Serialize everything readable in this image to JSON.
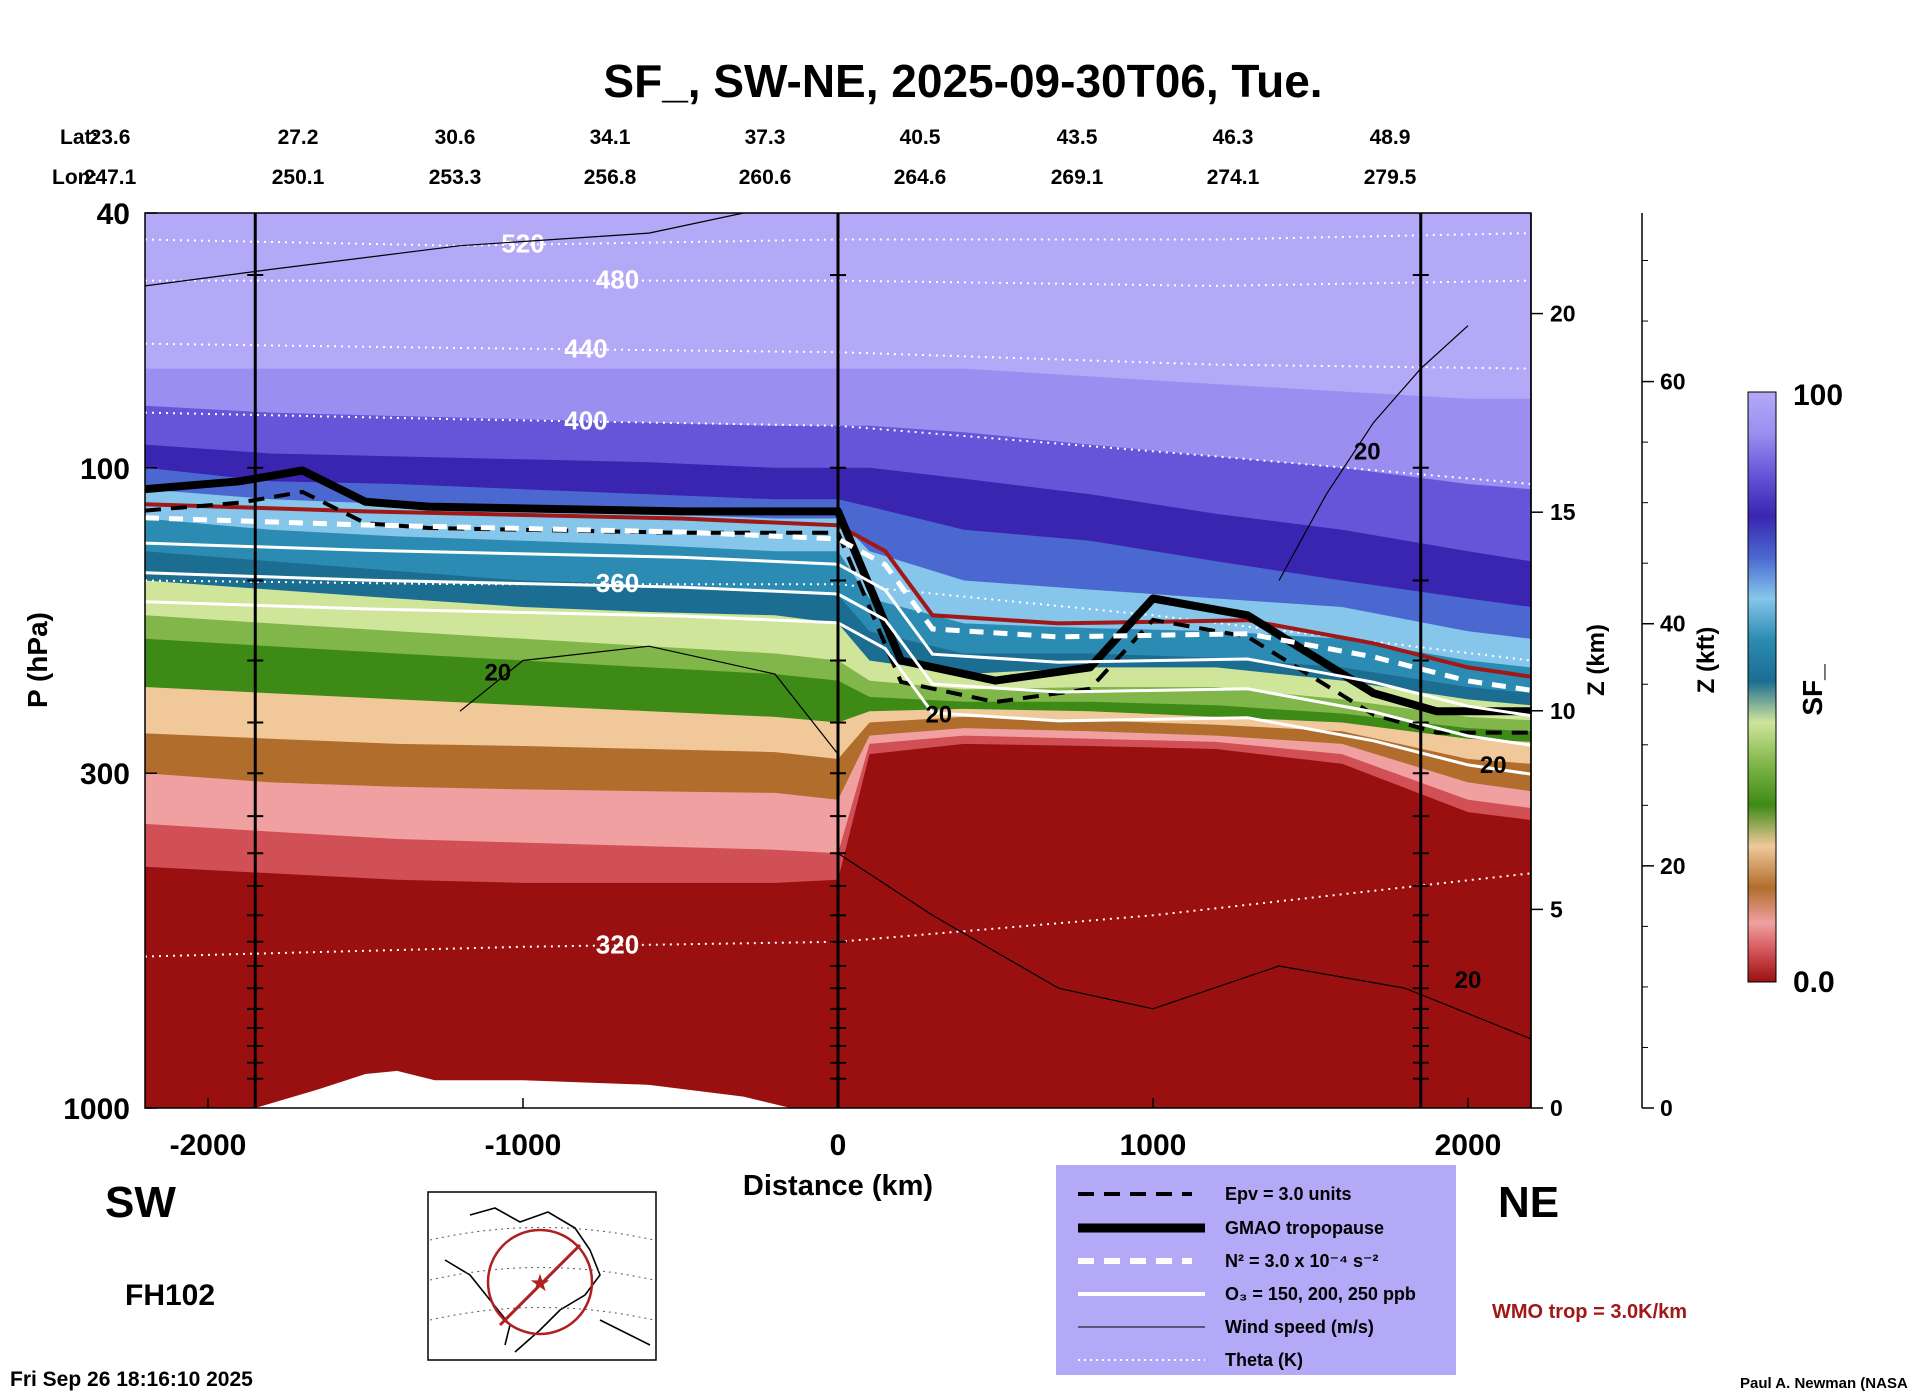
{
  "chart_data": {
    "type": "heatmap",
    "title": "SF_, SW-NE, 2025-09-30T06, Tue.",
    "xlabel": "Distance (km)",
    "ylabel": "P (hPa)",
    "y2label": "Z (km)",
    "y3label": "Z (kft)",
    "colorbar_label": "SF_",
    "colorbar_range": [
      0.0,
      100
    ],
    "colorbar_max_label": "100",
    "colorbar_min_label": "0.0",
    "xlim": [
      -2200,
      2200
    ],
    "x_ticks": [
      -2000,
      -1000,
      0,
      1000,
      2000
    ],
    "ylim": [
      1000,
      40
    ],
    "y_scale": "log",
    "y_ticks": [
      40,
      100,
      300,
      1000
    ],
    "z_km_ticks": [
      0,
      5,
      10,
      15,
      20
    ],
    "z_kft_ticks": [
      0,
      20,
      40,
      60
    ],
    "lat_label": "Lat:",
    "lon_label": "Lon:",
    "lat": [
      "23.6",
      "27.2",
      "30.6",
      "34.1",
      "37.3",
      "40.5",
      "43.5",
      "46.3",
      "48.9"
    ],
    "lon": [
      "247.1",
      "250.1",
      "253.3",
      "256.8",
      "260.6",
      "264.6",
      "269.1",
      "274.1",
      "279.5"
    ],
    "vertical_lines_km": [
      -1850,
      0,
      1850
    ],
    "theta_contours": [
      {
        "label": "520",
        "x": [
          -2200,
          -1200,
          0,
          1200,
          2200
        ],
        "p": [
          44,
          45,
          44,
          44,
          43
        ]
      },
      {
        "label": "480",
        "x": [
          -2200,
          -1200,
          0,
          1200,
          2200
        ],
        "p": [
          51,
          51,
          51,
          52,
          51
        ]
      },
      {
        "label": "440",
        "x": [
          -2200,
          -1200,
          0,
          1200,
          2200
        ],
        "p": [
          64,
          65,
          66,
          69,
          70
        ]
      },
      {
        "label": "400",
        "x": [
          -2200,
          -1200,
          0,
          1200,
          2200
        ],
        "p": [
          82,
          84,
          86,
          96,
          106
        ]
      },
      {
        "label": "360",
        "x": [
          -2200,
          -1200,
          0,
          1000,
          2200
        ],
        "p": [
          150,
          152,
          152,
          170,
          200
        ]
      },
      {
        "label": "320",
        "x": [
          -2200,
          -1000,
          0,
          1000,
          2200
        ],
        "p": [
          580,
          560,
          550,
          500,
          430
        ]
      }
    ],
    "tropopause_gmao": {
      "x": [
        -2200,
        -1900,
        -1700,
        -1500,
        -1300,
        -900,
        -500,
        0,
        200,
        500,
        800,
        1000,
        1300,
        1700,
        1900,
        2200
      ],
      "p": [
        108,
        105,
        101,
        113,
        115,
        116,
        117,
        117,
        200,
        215,
        205,
        160,
        170,
        225,
        240,
        240
      ]
    },
    "wmo_tropopause": {
      "x": [
        -2200,
        -1500,
        -500,
        0,
        150,
        300,
        700,
        1300,
        1700,
        2000,
        2200
      ],
      "p": [
        114,
        117,
        120,
        123,
        135,
        170,
        175,
        173,
        188,
        205,
        212
      ]
    },
    "wind_speed_label": "20",
    "legend": {
      "placement": "bottom-center",
      "entries": [
        "Epv = 3.0 units",
        "GMAO tropopause",
        "N² = 3.0 x 10⁻⁴ s⁻²",
        "O₃ = 150, 200, 250 ppb",
        "Wind speed (m/s)",
        "Theta (K)"
      ]
    },
    "annotations": {
      "left_direction": "SW",
      "right_direction": "NE",
      "forecast_hour": "FH102",
      "wmo_note": "WMO trop = 3.0K/km",
      "timestamp": "Fri Sep 26 18:16:10 2025",
      "credit": "Paul A. Newman (NASA"
    },
    "colors": {
      "panel_bg": "#b3a9f7",
      "wmo_line": "#a01818",
      "surface_red": "#9a1010"
    }
  }
}
